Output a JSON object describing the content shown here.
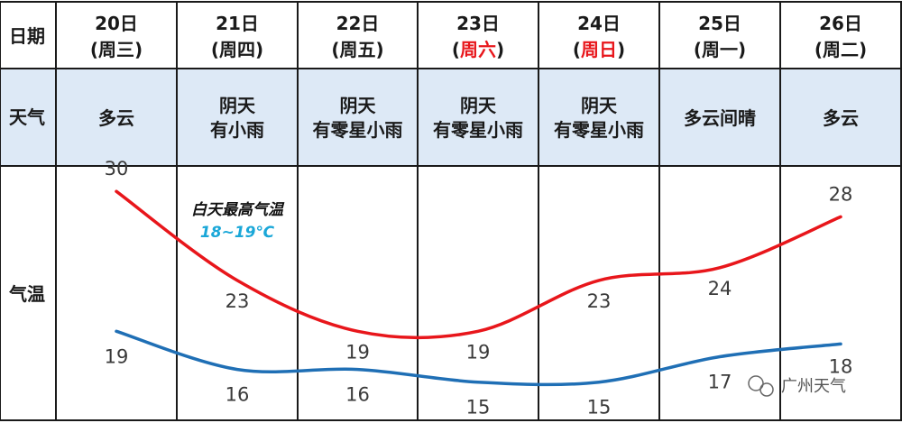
{
  "table": {
    "row_labels": {
      "date": "日期",
      "weather": "天气",
      "temperature": "气温"
    },
    "days": [
      {
        "date": "20日",
        "weekday": "(周三)",
        "weekend": false,
        "weather": [
          "多云"
        ]
      },
      {
        "date": "21日",
        "weekday": "(周四)",
        "weekend": false,
        "weather": [
          "阴天",
          "有小雨"
        ]
      },
      {
        "date": "22日",
        "weekday": "(周五)",
        "weekend": false,
        "weather": [
          "阴天",
          "有零星小雨"
        ]
      },
      {
        "date": "23日",
        "weekday_prefix": "(",
        "weekday_core": "周六",
        "weekday_suffix": ")",
        "weekend": true,
        "weather": [
          "阴天",
          "有零星小雨"
        ]
      },
      {
        "date": "24日",
        "weekday_prefix": "(",
        "weekday_core": "周日",
        "weekday_suffix": ")",
        "weekend": true,
        "weather": [
          "阴天",
          "有零星小雨"
        ]
      },
      {
        "date": "25日",
        "weekday": "(周一)",
        "weekend": false,
        "weather": [
          "多云间晴"
        ]
      },
      {
        "date": "26日",
        "weekday": "(周二)",
        "weekend": false,
        "weather": [
          "多云"
        ]
      }
    ]
  },
  "annotation": {
    "line1": "白天最高气温",
    "line2": "18~19℃"
  },
  "watermark": "广州天气",
  "colors": {
    "high": "#e8161b",
    "low": "#1f6fb5",
    "weather_row_bg": "#dde9f6",
    "grid": "#1a1a1a",
    "weekend_text": "#e8161b"
  },
  "chart_data": {
    "type": "line",
    "categories": [
      "20日",
      "21日",
      "22日",
      "23日",
      "24日",
      "25日",
      "26日"
    ],
    "series": [
      {
        "key": "high",
        "values": [
          30,
          23,
          19,
          19,
          23,
          24,
          28
        ]
      },
      {
        "key": "low",
        "values": [
          19,
          16,
          16,
          15,
          15,
          17,
          18
        ]
      }
    ],
    "ylim": [
      12,
      32
    ],
    "grid": false,
    "legend": "none"
  }
}
